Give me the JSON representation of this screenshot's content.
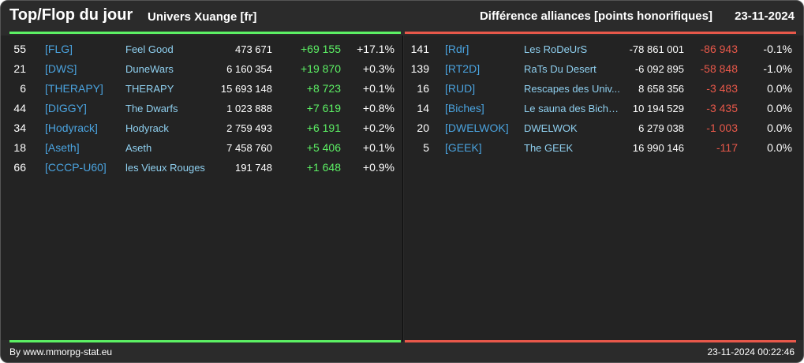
{
  "header": {
    "title": "Top/Flop du jour",
    "subtitle": "Univers Xuange [fr]",
    "right_title": "Différence alliances [points honorifiques]",
    "date": "23-11-2024"
  },
  "colors": {
    "positive": "#5cf064",
    "negative": "#e8584a",
    "tag": "#4aa3df",
    "name": "#8fd0f0",
    "background": "#2b2b2b"
  },
  "top": [
    {
      "rank": "55",
      "tag": "[FLG]",
      "name": "Feel Good",
      "points": "473 671",
      "diff": "+69 155",
      "pct": "+17.1%"
    },
    {
      "rank": "21",
      "tag": "[DWS]",
      "name": "DuneWars",
      "points": "6 160 354",
      "diff": "+19 870",
      "pct": "+0.3%"
    },
    {
      "rank": "6",
      "tag": "[THERAPY]",
      "name": "THERAPY",
      "points": "15 693 148",
      "diff": "+8 723",
      "pct": "+0.1%"
    },
    {
      "rank": "44",
      "tag": "[DIGGY]",
      "name": "The Dwarfs",
      "points": "1 023 888",
      "diff": "+7 619",
      "pct": "+0.8%"
    },
    {
      "rank": "34",
      "tag": "[Hodyrack]",
      "name": "Hodyrack",
      "points": "2 759 493",
      "diff": "+6 191",
      "pct": "+0.2%"
    },
    {
      "rank": "18",
      "tag": "[Aseth]",
      "name": "Aseth",
      "points": "7 458 760",
      "diff": "+5 406",
      "pct": "+0.1%"
    },
    {
      "rank": "66",
      "tag": "[CCCP-U60]",
      "name": "les Vieux Rouges",
      "points": "191 748",
      "diff": "+1 648",
      "pct": "+0.9%"
    }
  ],
  "flop": [
    {
      "rank": "141",
      "tag": "[Rdr]",
      "name": "Les RoDeUrS",
      "points": "-78 861 001",
      "diff": "-86 943",
      "pct": "-0.1%"
    },
    {
      "rank": "139",
      "tag": "[RT2D]",
      "name": "RaTs Du Desert",
      "points": "-6 092 895",
      "diff": "-58 848",
      "pct": "-1.0%"
    },
    {
      "rank": "16",
      "tag": "[RUD]",
      "name": "Rescapes des Univ...",
      "points": "8 658 356",
      "diff": "-3 483",
      "pct": "0.0%"
    },
    {
      "rank": "14",
      "tag": "[Biches]",
      "name": "Le sauna des Biche...",
      "points": "10 194 529",
      "diff": "-3 435",
      "pct": "0.0%"
    },
    {
      "rank": "20",
      "tag": "[DWELWOK]",
      "name": "DWELWOK",
      "points": "6 279 038",
      "diff": "-1 003",
      "pct": "0.0%"
    },
    {
      "rank": "5",
      "tag": "[GEEK]",
      "name": "The GEEK",
      "points": "16 990 146",
      "diff": "-117",
      "pct": "0.0%"
    }
  ],
  "footer": {
    "credit": "By www.mmorpg-stat.eu",
    "timestamp": "23-11-2024 00:22:46"
  }
}
